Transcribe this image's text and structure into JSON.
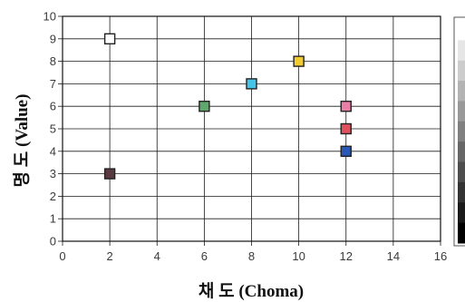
{
  "chart_data": {
    "type": "scatter",
    "xlabel": "채 도 (Choma)",
    "ylabel": "명 도  (Value)",
    "xlim": [
      0,
      16
    ],
    "ylim": [
      0,
      10
    ],
    "xticks": [
      0,
      2,
      4,
      6,
      8,
      10,
      12,
      14,
      16
    ],
    "yticks": [
      0,
      1,
      2,
      3,
      4,
      5,
      6,
      7,
      8,
      9,
      10
    ],
    "grid": true,
    "points": [
      {
        "x": 2,
        "y": 9,
        "color": "#ffffff"
      },
      {
        "x": 2,
        "y": 3,
        "color": "#5a3a40"
      },
      {
        "x": 6,
        "y": 6,
        "color": "#5fa86c"
      },
      {
        "x": 8,
        "y": 7,
        "color": "#45c4e8"
      },
      {
        "x": 10,
        "y": 8,
        "color": "#f2cc2e"
      },
      {
        "x": 12,
        "y": 6,
        "color": "#ea7ea6"
      },
      {
        "x": 12,
        "y": 5,
        "color": "#e2505e"
      },
      {
        "x": 12,
        "y": 4,
        "color": "#2858b8"
      }
    ],
    "scale_legend": {
      "type": "grayscale-value-bar",
      "levels": [
        10,
        9,
        8,
        7,
        6,
        5,
        4,
        3,
        2,
        1,
        0
      ]
    }
  }
}
